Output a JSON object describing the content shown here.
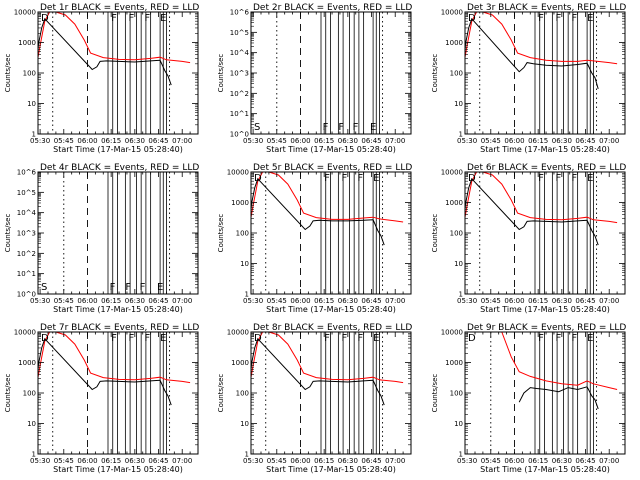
{
  "figure": {
    "background": "#ffffff",
    "colors": {
      "events": "#000000",
      "lld": "#ff0000"
    }
  },
  "chart_data": [
    {
      "type": "line",
      "scale": "log",
      "title": "Det 1r  BLACK = Events, RED = LLD",
      "xlabel": "Start Time (17-Mar-15 05:28:40)",
      "ylabel": "Counts/sec",
      "xlim": [
        "05:28:40",
        "07:10:00"
      ],
      "ylim": [
        1,
        10000
      ],
      "x_ticks": [
        "05:30",
        "05:45",
        "06:00",
        "06:15",
        "06:30",
        "06:45",
        "07:00"
      ],
      "y_ticks": [
        "1",
        "10",
        "100",
        "1000",
        "10000"
      ],
      "flags": [
        "D",
        "F",
        "F",
        "F",
        "E"
      ],
      "series": [
        {
          "color": "#ff0000",
          "x": [
            "05:28",
            "05:30",
            "05:33",
            "05:36",
            "05:40",
            "05:46",
            "05:52",
            "05:58",
            "06:02",
            "06:10",
            "06:20",
            "06:30",
            "06:40",
            "06:46",
            "06:50",
            "07:00",
            "07:05"
          ],
          "y": [
            200,
            800,
            5000,
            10000,
            10000,
            8000,
            4000,
            1200,
            450,
            320,
            280,
            270,
            300,
            330,
            270,
            240,
            220
          ]
        },
        {
          "color": "#000000",
          "x": [
            "05:28",
            "05:29",
            "05:31",
            "05:33",
            "06:03",
            "06:06",
            "06:08",
            "06:12",
            "06:20",
            "06:30",
            "06:40",
            "06:46",
            "06:49",
            "06:51",
            "06:53"
          ],
          "y": [
            200,
            900,
            3000,
            6000,
            130,
            160,
            240,
            250,
            240,
            230,
            250,
            260,
            120,
            80,
            40
          ]
        }
      ],
      "dashed_x": [
        "06:00"
      ],
      "dotted_x": [
        "05:38",
        "06:52"
      ],
      "solid_x": [
        "06:13",
        "06:16",
        "06:19",
        "06:24",
        "06:27",
        "06:31",
        "06:34",
        "06:37",
        "06:40",
        "06:46",
        "06:48",
        "06:50"
      ]
    },
    {
      "type": "line",
      "scale": "log",
      "title": "Det 2r  BLACK = Events, RED = LLD",
      "xlabel": "Start Time (17-Mar-15 05:28:40)",
      "ylabel": "Counts/sec",
      "xlim": [
        "05:28:40",
        "07:10:00"
      ],
      "ylim": [
        1,
        1000000
      ],
      "x_ticks": [
        "05:30",
        "05:45",
        "06:00",
        "06:15",
        "06:30",
        "06:45",
        "07:00"
      ],
      "y_ticks": [
        "10^0",
        "10^1",
        "10^2",
        "10^3",
        "10^4",
        "10^5",
        "10^6"
      ],
      "flags": [
        "S",
        "F",
        "F",
        "F",
        "E"
      ],
      "series": [],
      "dashed_x": [
        "06:00"
      ],
      "dotted_x": [
        "05:45",
        "06:52"
      ],
      "solid_x": [
        "06:13",
        "06:16",
        "06:19",
        "06:24",
        "06:27",
        "06:31",
        "06:34",
        "06:37",
        "06:40",
        "06:46",
        "06:48",
        "06:50"
      ]
    },
    {
      "type": "line",
      "scale": "log",
      "title": "Det 3r  BLACK = Events, RED = LLD",
      "xlabel": "Start Time (17-Mar-15 05:28:40)",
      "ylabel": "Counts/sec",
      "xlim": [
        "05:28:40",
        "07:10:00"
      ],
      "ylim": [
        1,
        10000
      ],
      "x_ticks": [
        "05:30",
        "05:45",
        "06:00",
        "06:15",
        "06:30",
        "06:45",
        "07:00"
      ],
      "y_ticks": [
        "1",
        "10",
        "100",
        "1000",
        "10000"
      ],
      "flags": [
        "D",
        "F",
        "F",
        "F",
        "E"
      ],
      "series": [
        {
          "color": "#ff0000",
          "x": [
            "05:28",
            "05:30",
            "05:33",
            "05:36",
            "05:40",
            "05:46",
            "05:52",
            "05:58",
            "06:02",
            "06:10",
            "06:20",
            "06:30",
            "06:40",
            "06:46",
            "06:50",
            "07:00",
            "07:05"
          ],
          "y": [
            200,
            800,
            5000,
            10000,
            10000,
            8000,
            4000,
            1200,
            450,
            320,
            260,
            240,
            240,
            260,
            250,
            220,
            200
          ]
        },
        {
          "color": "#000000",
          "x": [
            "05:28",
            "05:29",
            "05:31",
            "05:33",
            "06:03",
            "06:06",
            "06:08",
            "06:12",
            "06:20",
            "06:30",
            "06:40",
            "06:46",
            "06:49",
            "06:51",
            "06:53"
          ],
          "y": [
            150,
            900,
            3000,
            6000,
            110,
            150,
            220,
            200,
            180,
            170,
            190,
            210,
            100,
            70,
            30
          ]
        }
      ],
      "dashed_x": [
        "06:00"
      ],
      "dotted_x": [
        "05:38",
        "06:52"
      ],
      "solid_x": [
        "06:13",
        "06:16",
        "06:19",
        "06:24",
        "06:27",
        "06:31",
        "06:34",
        "06:37",
        "06:40",
        "06:46",
        "06:48",
        "06:50"
      ]
    },
    {
      "type": "line",
      "scale": "log",
      "title": "Det 4r  BLACK = Events, RED = LLD",
      "xlabel": "Start Time (17-Mar-15 05:28:40)",
      "ylabel": "Counts/sec",
      "xlim": [
        "05:28:40",
        "07:10:00"
      ],
      "ylim": [
        1,
        1000000
      ],
      "x_ticks": [
        "05:30",
        "05:45",
        "06:00",
        "06:15",
        "06:30",
        "06:45",
        "07:00"
      ],
      "y_ticks": [
        "10^0",
        "10^1",
        "10^2",
        "10^3",
        "10^4",
        "10^5",
        "10^6"
      ],
      "flags": [
        "S",
        "F",
        "F",
        "F",
        "E"
      ],
      "series": [],
      "dashed_x": [
        "06:00"
      ],
      "dotted_x": [
        "05:45",
        "06:52"
      ],
      "solid_x": [
        "06:13",
        "06:16",
        "06:19",
        "06:24",
        "06:27",
        "06:31",
        "06:34",
        "06:37",
        "06:40",
        "06:46",
        "06:48",
        "06:50"
      ]
    },
    {
      "type": "line",
      "scale": "log",
      "title": "Det 5r  BLACK = Events, RED = LLD",
      "xlabel": "Start Time (17-Mar-15 05:28:40)",
      "ylabel": "Counts/sec",
      "xlim": [
        "05:28:40",
        "07:10:00"
      ],
      "ylim": [
        1,
        10000
      ],
      "x_ticks": [
        "05:30",
        "05:45",
        "06:00",
        "06:15",
        "06:30",
        "06:45",
        "07:00"
      ],
      "y_ticks": [
        "1",
        "10",
        "100",
        "1000",
        "10000"
      ],
      "flags": [
        "D",
        "F",
        "F",
        "F",
        "E"
      ],
      "series": [
        {
          "color": "#ff0000",
          "x": [
            "05:28",
            "05:30",
            "05:33",
            "05:36",
            "05:40",
            "05:46",
            "05:52",
            "05:58",
            "06:02",
            "06:10",
            "06:20",
            "06:30",
            "06:40",
            "06:46",
            "06:50",
            "07:00",
            "07:05"
          ],
          "y": [
            200,
            800,
            5000,
            10000,
            10000,
            8000,
            4000,
            1200,
            450,
            320,
            280,
            280,
            310,
            330,
            290,
            250,
            230
          ]
        },
        {
          "color": "#000000",
          "x": [
            "05:28",
            "05:29",
            "05:31",
            "05:33",
            "06:03",
            "06:06",
            "06:08",
            "06:12",
            "06:20",
            "06:30",
            "06:40",
            "06:46",
            "06:49",
            "06:51",
            "06:53"
          ],
          "y": [
            200,
            900,
            3000,
            6000,
            130,
            170,
            250,
            260,
            250,
            250,
            260,
            270,
            120,
            80,
            40
          ]
        }
      ],
      "dashed_x": [
        "06:00"
      ],
      "dotted_x": [
        "05:38",
        "06:52"
      ],
      "solid_x": [
        "06:13",
        "06:16",
        "06:19",
        "06:24",
        "06:27",
        "06:31",
        "06:34",
        "06:37",
        "06:40",
        "06:46",
        "06:48",
        "06:50"
      ]
    },
    {
      "type": "line",
      "scale": "log",
      "title": "Det 6r  BLACK = Events, RED = LLD",
      "xlabel": "Start Time (17-Mar-15 05:28:40)",
      "ylabel": "Counts/sec",
      "xlim": [
        "05:28:40",
        "07:10:00"
      ],
      "ylim": [
        1,
        10000
      ],
      "x_ticks": [
        "05:30",
        "05:45",
        "06:00",
        "06:15",
        "06:30",
        "06:45",
        "07:00"
      ],
      "y_ticks": [
        "1",
        "10",
        "100",
        "1000",
        "10000"
      ],
      "flags": [
        "D",
        "F",
        "F",
        "F",
        "E"
      ],
      "series": [
        {
          "color": "#ff0000",
          "x": [
            "05:28",
            "05:30",
            "05:33",
            "05:36",
            "05:40",
            "05:46",
            "05:52",
            "05:58",
            "06:02",
            "06:10",
            "06:20",
            "06:30",
            "06:40",
            "06:46",
            "06:50",
            "07:00",
            "07:05"
          ],
          "y": [
            200,
            800,
            5000,
            10000,
            10000,
            8000,
            4000,
            1200,
            450,
            320,
            280,
            270,
            300,
            330,
            270,
            240,
            220
          ]
        },
        {
          "color": "#000000",
          "x": [
            "05:28",
            "05:29",
            "05:31",
            "05:33",
            "06:03",
            "06:06",
            "06:08",
            "06:12",
            "06:20",
            "06:30",
            "06:40",
            "06:46",
            "06:49",
            "06:51",
            "06:53"
          ],
          "y": [
            200,
            900,
            3000,
            6000,
            130,
            160,
            240,
            250,
            240,
            230,
            250,
            260,
            120,
            80,
            40
          ]
        }
      ],
      "dashed_x": [
        "06:00"
      ],
      "dotted_x": [
        "05:38",
        "06:52"
      ],
      "solid_x": [
        "06:13",
        "06:16",
        "06:19",
        "06:24",
        "06:27",
        "06:31",
        "06:34",
        "06:37",
        "06:40",
        "06:46",
        "06:48",
        "06:50"
      ]
    },
    {
      "type": "line",
      "scale": "log",
      "title": "Det 7r  BLACK = Events, RED = LLD",
      "xlabel": "Start Time (17-Mar-15 05:28:40)",
      "ylabel": "Counts/sec",
      "xlim": [
        "05:28:40",
        "07:10:00"
      ],
      "ylim": [
        1,
        10000
      ],
      "x_ticks": [
        "05:30",
        "05:45",
        "06:00",
        "06:15",
        "06:30",
        "06:45",
        "07:00"
      ],
      "y_ticks": [
        "1",
        "10",
        "100",
        "1000",
        "10000"
      ],
      "flags": [
        "D",
        "F",
        "F",
        "F",
        "E"
      ],
      "series": [
        {
          "color": "#ff0000",
          "x": [
            "05:28",
            "05:30",
            "05:33",
            "05:36",
            "05:40",
            "05:46",
            "05:52",
            "05:58",
            "06:02",
            "06:10",
            "06:20",
            "06:30",
            "06:40",
            "06:46",
            "06:50",
            "07:00",
            "07:05"
          ],
          "y": [
            200,
            800,
            5000,
            10000,
            10000,
            8000,
            4000,
            1200,
            450,
            320,
            280,
            270,
            300,
            330,
            270,
            240,
            220
          ]
        },
        {
          "color": "#000000",
          "x": [
            "05:28",
            "05:29",
            "05:31",
            "05:33",
            "06:03",
            "06:06",
            "06:08",
            "06:12",
            "06:20",
            "06:30",
            "06:40",
            "06:46",
            "06:49",
            "06:51",
            "06:53"
          ],
          "y": [
            200,
            900,
            3000,
            6000,
            130,
            160,
            240,
            250,
            240,
            230,
            250,
            260,
            120,
            80,
            40
          ]
        }
      ],
      "dashed_x": [
        "06:00"
      ],
      "dotted_x": [
        "05:38",
        "06:52"
      ],
      "solid_x": [
        "06:13",
        "06:16",
        "06:19",
        "06:24",
        "06:27",
        "06:31",
        "06:34",
        "06:37",
        "06:40",
        "06:46",
        "06:48",
        "06:50"
      ]
    },
    {
      "type": "line",
      "scale": "log",
      "title": "Det 8r  BLACK = Events, RED = LLD",
      "xlabel": "Start Time (17-Mar-15 05:28:40)",
      "ylabel": "Counts/sec",
      "xlim": [
        "05:28:40",
        "07:10:00"
      ],
      "ylim": [
        1,
        10000
      ],
      "x_ticks": [
        "05:30",
        "05:45",
        "06:00",
        "06:15",
        "06:30",
        "06:45",
        "07:00"
      ],
      "y_ticks": [
        "1",
        "10",
        "100",
        "1000",
        "10000"
      ],
      "flags": [
        "D",
        "F",
        "F",
        "F",
        "E"
      ],
      "series": [
        {
          "color": "#ff0000",
          "x": [
            "05:28",
            "05:30",
            "05:33",
            "05:36",
            "05:40",
            "05:46",
            "05:52",
            "05:58",
            "06:02",
            "06:10",
            "06:20",
            "06:30",
            "06:40",
            "06:46",
            "06:50",
            "07:00",
            "07:05"
          ],
          "y": [
            200,
            800,
            5000,
            10000,
            10000,
            8000,
            4000,
            1200,
            450,
            320,
            280,
            270,
            300,
            330,
            270,
            240,
            220
          ]
        },
        {
          "color": "#000000",
          "x": [
            "05:28",
            "05:29",
            "05:31",
            "05:33",
            "06:03",
            "06:06",
            "06:08",
            "06:12",
            "06:20",
            "06:30",
            "06:40",
            "06:46",
            "06:49",
            "06:51",
            "06:53"
          ],
          "y": [
            200,
            900,
            3000,
            6000,
            130,
            160,
            240,
            250,
            240,
            230,
            250,
            260,
            120,
            80,
            40
          ]
        }
      ],
      "dashed_x": [
        "06:00"
      ],
      "dotted_x": [
        "05:38",
        "06:52"
      ],
      "solid_x": [
        "06:13",
        "06:16",
        "06:19",
        "06:24",
        "06:27",
        "06:31",
        "06:34",
        "06:37",
        "06:40",
        "06:46",
        "06:48",
        "06:50"
      ]
    },
    {
      "type": "line",
      "scale": "log",
      "title": "Det 9r  BLACK = Events, RED = LLD",
      "xlabel": "Start Time (17-Mar-15 05:28:40)",
      "ylabel": "Counts/sec",
      "xlim": [
        "05:28:40",
        "07:10:00"
      ],
      "ylim": [
        1,
        10000
      ],
      "x_ticks": [
        "05:30",
        "05:45",
        "06:00",
        "06:15",
        "06:30",
        "06:45",
        "07:00"
      ],
      "y_ticks": [
        "1",
        "10",
        "100",
        "1000",
        "10000"
      ],
      "flags": [
        "D",
        "F",
        "F",
        "F",
        "E"
      ],
      "series": [
        {
          "color": "#ff0000",
          "x": [
            "05:52",
            "05:58",
            "06:03",
            "06:10",
            "06:20",
            "06:30",
            "06:40",
            "06:46",
            "06:50",
            "07:00",
            "07:05"
          ],
          "y": [
            10000,
            1500,
            500,
            350,
            250,
            200,
            180,
            250,
            200,
            150,
            130
          ]
        },
        {
          "color": "#000000",
          "x": [
            "06:03",
            "06:06",
            "06:10",
            "06:14",
            "06:20",
            "06:28",
            "06:34",
            "06:40",
            "06:46",
            "06:49",
            "06:51",
            "06:53"
          ],
          "y": [
            50,
            100,
            150,
            140,
            130,
            110,
            150,
            130,
            160,
            80,
            60,
            30
          ]
        }
      ],
      "dashed_x": [
        "06:00"
      ],
      "dotted_x": [
        "05:45",
        "06:52"
      ],
      "solid_x": [
        "06:13",
        "06:16",
        "06:19",
        "06:24",
        "06:27",
        "06:31",
        "06:34",
        "06:37",
        "06:40",
        "06:46",
        "06:48",
        "06:50"
      ]
    }
  ]
}
